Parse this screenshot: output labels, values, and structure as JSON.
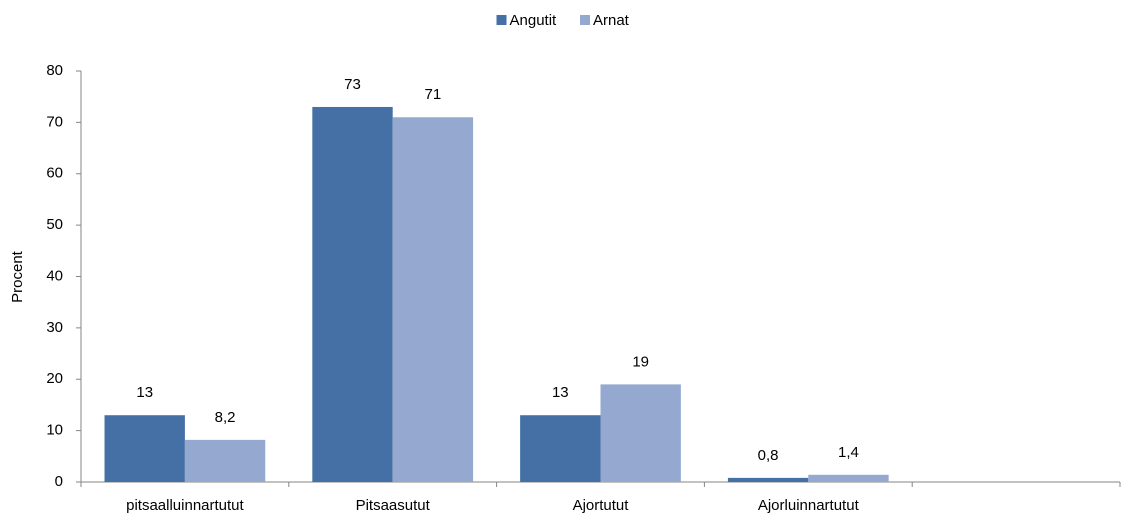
{
  "chart_data": {
    "type": "bar",
    "y_label": "Procent",
    "categories": [
      "pitsaalluinnartutut",
      "Pitsaasutut",
      "Ajortutut",
      "Ajorluinnartutut",
      null
    ],
    "series": [
      {
        "name": "Angutit",
        "color": "#4470a5",
        "values": [
          13,
          73,
          13,
          0.8,
          null
        ],
        "value_labels": [
          "13",
          "73",
          "13",
          "0,8",
          null
        ]
      },
      {
        "name": "Arnat",
        "color": "#95a9d0",
        "values": [
          8.2,
          71,
          19,
          1.4,
          null
        ],
        "value_labels": [
          "8,2",
          "71",
          "19",
          "1,4",
          null
        ]
      }
    ],
    "ylim": [
      0,
      80
    ],
    "yticks": [
      0,
      10,
      20,
      30,
      40,
      50,
      60,
      70,
      80
    ],
    "grid": false,
    "legend": "top"
  }
}
